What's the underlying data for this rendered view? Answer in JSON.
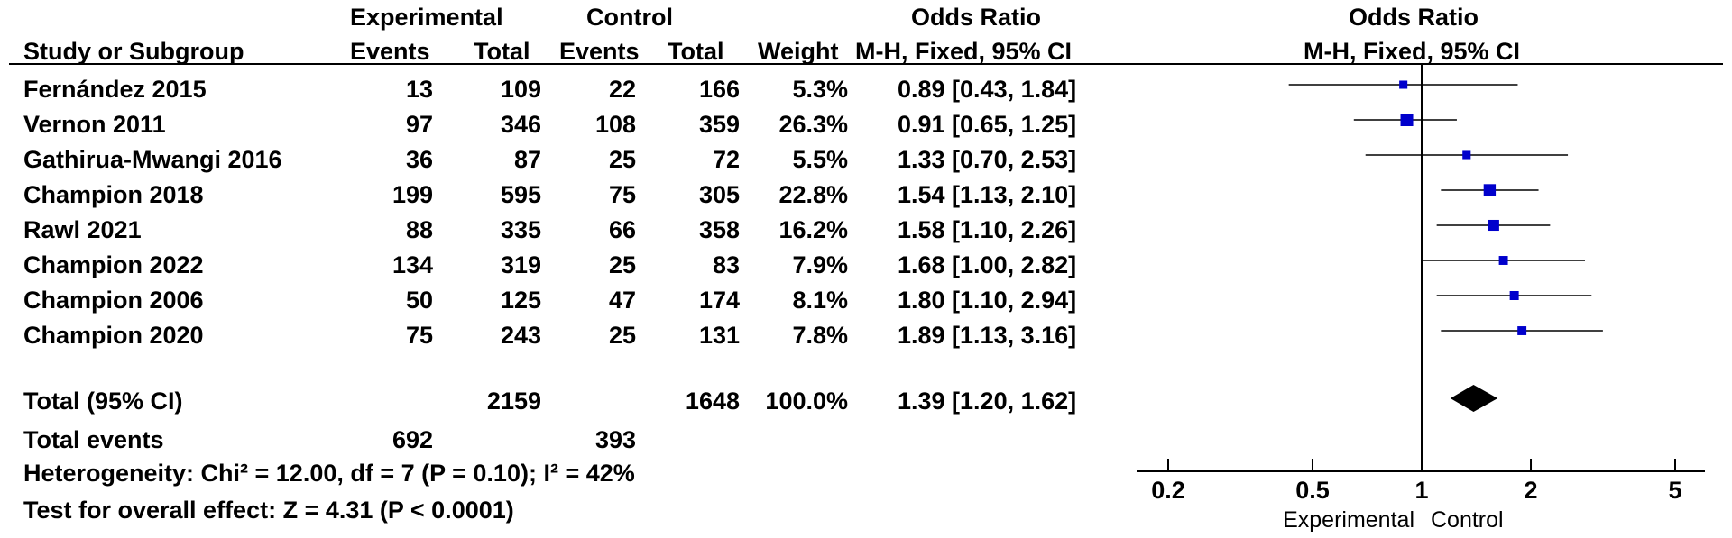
{
  "header": {
    "group_experimental": "Experimental",
    "group_control": "Control",
    "or_left": "Odds Ratio",
    "method_left": "M-H, Fixed, 95% CI",
    "or_right": "Odds Ratio",
    "method_right": "M-H, Fixed, 95% CI",
    "study_col": "Study or Subgroup",
    "events_col": "Events",
    "total_col": "Total",
    "events_col2": "Events",
    "total_col2": "Total",
    "weight_col": "Weight"
  },
  "studies": [
    {
      "name": "Fernández 2015",
      "exp_events": "13",
      "exp_total": "109",
      "ctl_events": "22",
      "ctl_total": "166",
      "weight": "5.3%",
      "ci_text": "0.89 [0.43, 1.84]"
    },
    {
      "name": "Vernon 2011",
      "exp_events": "97",
      "exp_total": "346",
      "ctl_events": "108",
      "ctl_total": "359",
      "weight": "26.3%",
      "ci_text": "0.91 [0.65, 1.25]"
    },
    {
      "name": "Gathirua-Mwangi 2016",
      "exp_events": "36",
      "exp_total": "87",
      "ctl_events": "25",
      "ctl_total": "72",
      "weight": "5.5%",
      "ci_text": "1.33 [0.70, 2.53]"
    },
    {
      "name": "Champion 2018",
      "exp_events": "199",
      "exp_total": "595",
      "ctl_events": "75",
      "ctl_total": "305",
      "weight": "22.8%",
      "ci_text": "1.54 [1.13, 2.10]"
    },
    {
      "name": "Rawl 2021",
      "exp_events": "88",
      "exp_total": "335",
      "ctl_events": "66",
      "ctl_total": "358",
      "weight": "16.2%",
      "ci_text": "1.58 [1.10, 2.26]"
    },
    {
      "name": "Champion 2022",
      "exp_events": "134",
      "exp_total": "319",
      "ctl_events": "25",
      "ctl_total": "83",
      "weight": "7.9%",
      "ci_text": "1.68 [1.00, 2.82]"
    },
    {
      "name": "Champion 2006",
      "exp_events": "50",
      "exp_total": "125",
      "ctl_events": "47",
      "ctl_total": "174",
      "weight": "8.1%",
      "ci_text": "1.80 [1.10, 2.94]"
    },
    {
      "name": "Champion 2020",
      "exp_events": "75",
      "exp_total": "243",
      "ctl_events": "25",
      "ctl_total": "131",
      "weight": "7.8%",
      "ci_text": "1.89 [1.13, 3.16]"
    }
  ],
  "total": {
    "label": "Total (95% CI)",
    "exp_total": "2159",
    "ctl_total": "1648",
    "weight": "100.0%",
    "ci_text": "1.39 [1.20, 1.62]"
  },
  "total_events": {
    "label": "Total events",
    "exp": "692",
    "ctl": "393"
  },
  "heterogeneity": "Heterogeneity: Chi² = 12.00, df = 7 (P = 0.10); I² = 42%",
  "overall_effect": "Test for overall effect: Z = 4.31 (P < 0.0001)",
  "chart_data": {
    "type": "forest",
    "scale": "log",
    "xlim": [
      0.2,
      5
    ],
    "ticks": [
      0.2,
      0.5,
      1,
      2,
      5
    ],
    "tick_labels": [
      "0.2",
      "0.5",
      "1",
      "2",
      "5"
    ],
    "reference_line": 1,
    "favours_left": "Experimental",
    "favours_right": "Control",
    "marker_color": "#0000cc",
    "points": [
      {
        "or": 0.89,
        "lo": 0.43,
        "hi": 1.84,
        "weight": 5.3
      },
      {
        "or": 0.91,
        "lo": 0.65,
        "hi": 1.25,
        "weight": 26.3
      },
      {
        "or": 1.33,
        "lo": 0.7,
        "hi": 2.53,
        "weight": 5.5
      },
      {
        "or": 1.54,
        "lo": 1.13,
        "hi": 2.1,
        "weight": 22.8
      },
      {
        "or": 1.58,
        "lo": 1.1,
        "hi": 2.26,
        "weight": 16.2
      },
      {
        "or": 1.68,
        "lo": 1.0,
        "hi": 2.82,
        "weight": 7.9
      },
      {
        "or": 1.8,
        "lo": 1.1,
        "hi": 2.94,
        "weight": 8.1
      },
      {
        "or": 1.89,
        "lo": 1.13,
        "hi": 3.16,
        "weight": 7.8
      }
    ],
    "pooled": {
      "or": 1.39,
      "lo": 1.2,
      "hi": 1.62
    }
  }
}
